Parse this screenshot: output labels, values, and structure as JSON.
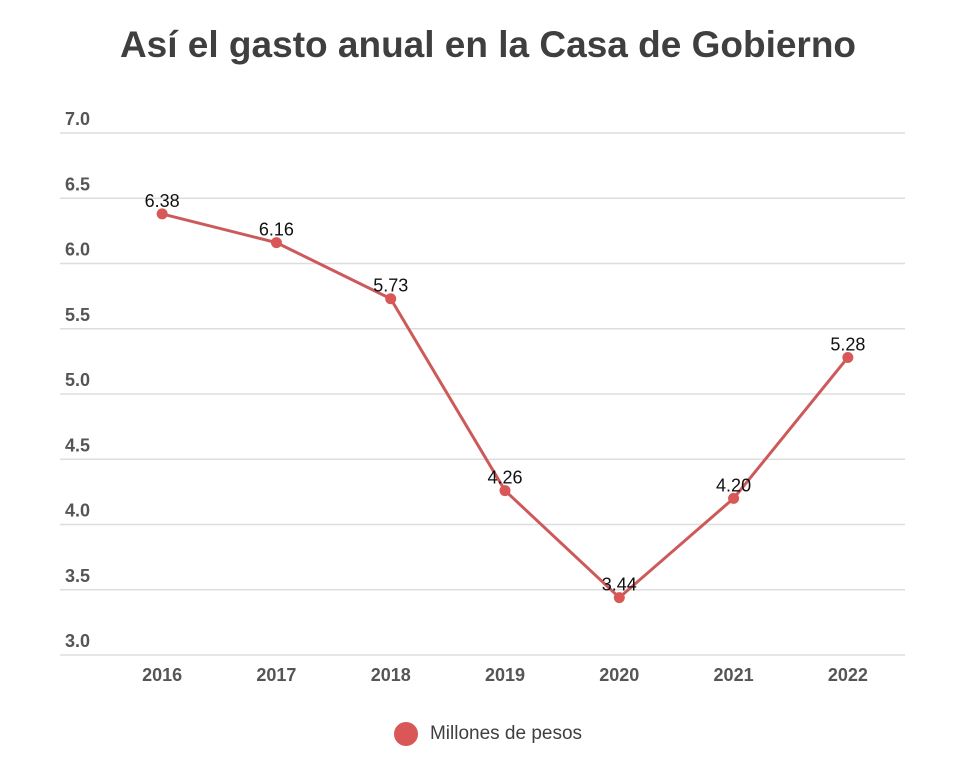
{
  "chart_data": {
    "type": "line",
    "title": "Así el gasto anual en la Casa de Gobierno",
    "categories": [
      "2016",
      "2017",
      "2018",
      "2019",
      "2020",
      "2021",
      "2022"
    ],
    "series": [
      {
        "name": "Millones de pesos",
        "values": [
          6.38,
          6.16,
          5.73,
          4.26,
          3.44,
          4.2,
          5.28
        ]
      }
    ],
    "data_labels": [
      "6.38",
      "6.16",
      "5.73",
      "4.26",
      "3.44",
      "4.20",
      "5.28"
    ],
    "y_ticks": [
      "3.0",
      "3.5",
      "4.0",
      "4.5",
      "5.0",
      "5.5",
      "6.0",
      "6.5",
      "7.0"
    ],
    "ylim": [
      3.0,
      7.0
    ],
    "xlabel": "",
    "ylabel": "",
    "grid": true,
    "legend_position": "bottom",
    "colors": {
      "series": "#cd5a5a",
      "marker": "#d95757",
      "grid": "#dddddd",
      "title": "#3f3f3f",
      "ticks": "#555555"
    }
  }
}
